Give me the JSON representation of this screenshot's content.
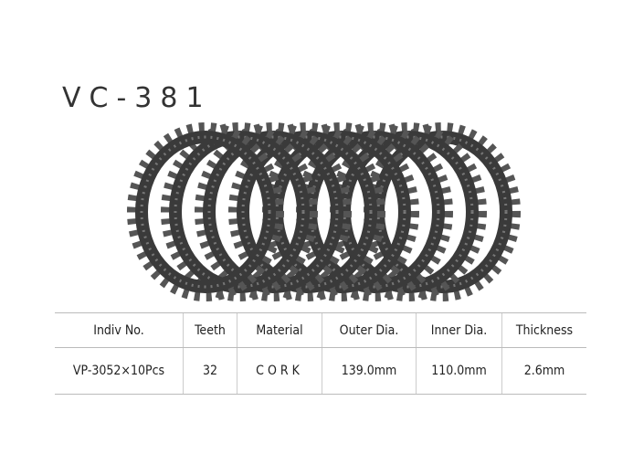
{
  "title": "VC-381",
  "image": {
    "subject": "clutch-plates",
    "plate_count_shown": 8
  },
  "table": {
    "headers": [
      "Indiv No.",
      "Teeth",
      "Material",
      "Outer Dia.",
      "Inner Dia.",
      "Thickness"
    ],
    "rows": [
      [
        "VP-3052×10Pcs",
        "32",
        "CORK",
        "139.0mm",
        "110.0mm",
        "2.6mm"
      ]
    ]
  }
}
